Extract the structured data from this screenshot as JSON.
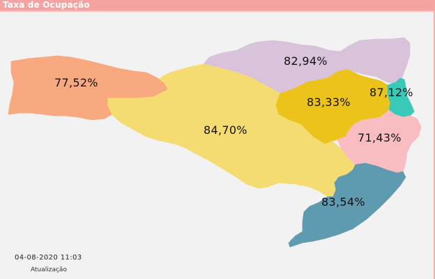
{
  "header": {
    "title": "Taxa de Ocupação"
  },
  "colors": {
    "header_bg": "#f4a2a2",
    "background": "#f2f2f2",
    "oeste": "#f8a97f",
    "meio_oeste": "#f5dc72",
    "serra": "#d9c3db",
    "vale_itajai": "#ecc31a",
    "norte": "#39c9b8",
    "grande_florianopolis": "#f9bcc0",
    "sul": "#5f9bb0"
  },
  "regions": {
    "oeste": {
      "value": "77,52%"
    },
    "meio_oeste": {
      "value": "84,70%"
    },
    "serra": {
      "value": "82,94%"
    },
    "vale_itajai": {
      "value": "83,33%"
    },
    "norte": {
      "value": "87,12%"
    },
    "grande_florianopolis": {
      "value": "71,43%"
    },
    "sul": {
      "value": "83,54%"
    }
  },
  "footer": {
    "timestamp": "04-08-2020 11:03",
    "updated_label": "Atualização"
  }
}
